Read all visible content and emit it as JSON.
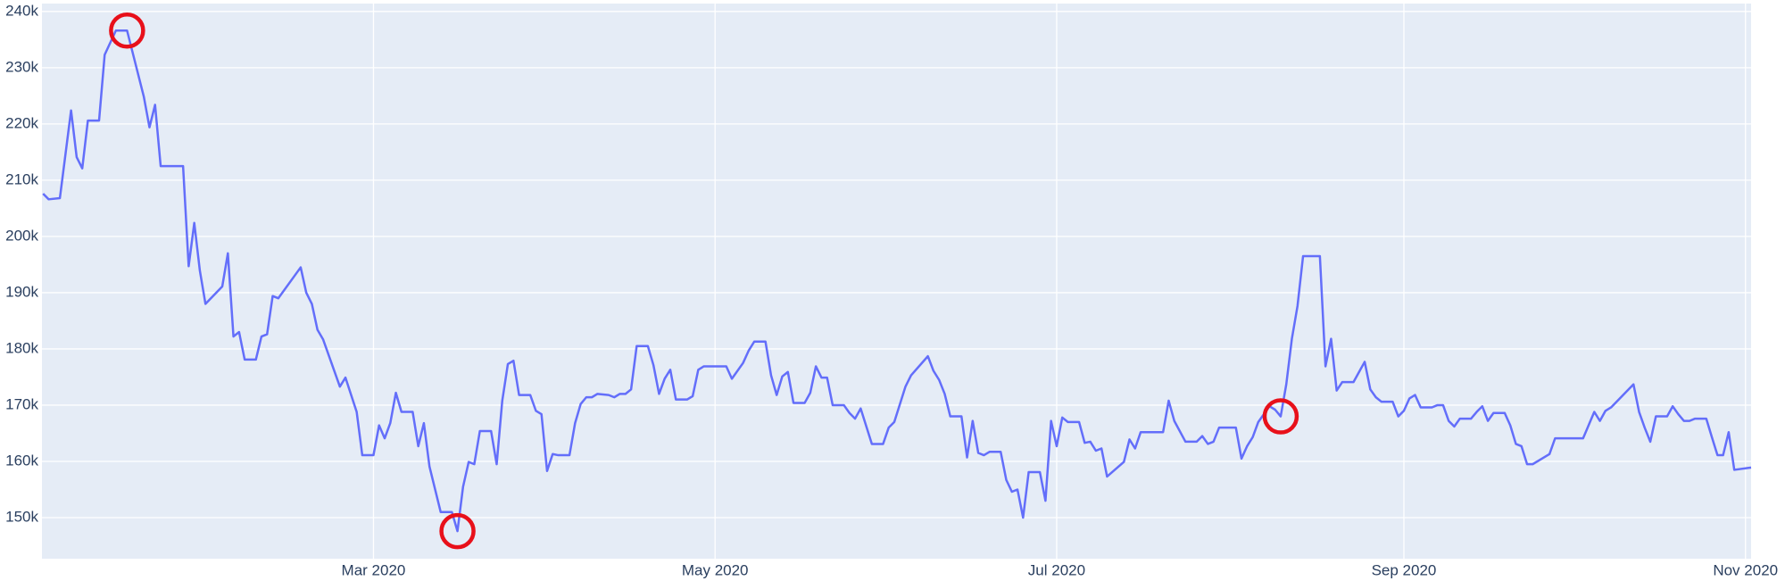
{
  "chart_data": {
    "type": "line",
    "xlim": [
      0.8,
      306
    ],
    "xticks": [
      {
        "value": 60,
        "label": "Mar 2020"
      },
      {
        "value": 121,
        "label": "May 2020"
      },
      {
        "value": 182,
        "label": "Jul 2020"
      },
      {
        "value": 244,
        "label": "Sep 2020"
      },
      {
        "value": 305,
        "label": "Nov 2020"
      }
    ],
    "ylim": [
      142700,
      241400
    ],
    "yticks": [
      {
        "value": 150000,
        "label": "150k"
      },
      {
        "value": 160000,
        "label": "160k"
      },
      {
        "value": 170000,
        "label": "170k"
      },
      {
        "value": 180000,
        "label": "180k"
      },
      {
        "value": 190000,
        "label": "190k"
      },
      {
        "value": 200000,
        "label": "200k"
      },
      {
        "value": 210000,
        "label": "210k"
      },
      {
        "value": 220000,
        "label": "220k"
      },
      {
        "value": 230000,
        "label": "230k"
      },
      {
        "value": 240000,
        "label": "240k"
      }
    ],
    "grid": true,
    "background": "#e5ecf6",
    "series": [
      {
        "color": "#636efa",
        "mode": "lines",
        "x": [
          1,
          2,
          4,
          6,
          7,
          8,
          9,
          11,
          12,
          14,
          16,
          19,
          20,
          21,
          22,
          26,
          27,
          28,
          29,
          30,
          33,
          34,
          35,
          36,
          37,
          39,
          40,
          41,
          42,
          43,
          47,
          48,
          49,
          50,
          51,
          54,
          55,
          57,
          58,
          60,
          61,
          62,
          63,
          64,
          65,
          67,
          68,
          69,
          70,
          72,
          74,
          75,
          76,
          77,
          78,
          79,
          81,
          82,
          83,
          84,
          85,
          86,
          88,
          89,
          90,
          91,
          92,
          93,
          95,
          96,
          97,
          98,
          99,
          100,
          102,
          103,
          104,
          105,
          106,
          107,
          109,
          110,
          111,
          112,
          113,
          114,
          116,
          117,
          118,
          119,
          123,
          124,
          126,
          127,
          128,
          130,
          131,
          132,
          133,
          134,
          135,
          137,
          138,
          139,
          140,
          141,
          142,
          144,
          145,
          146,
          147,
          149,
          151,
          152,
          153,
          155,
          156,
          159,
          160,
          161,
          162,
          163,
          165,
          166,
          167,
          168,
          169,
          170,
          172,
          173,
          174,
          175,
          176,
          177,
          179,
          180,
          181,
          182,
          183,
          184,
          186,
          187,
          188,
          189,
          190,
          191,
          194,
          195,
          196,
          197,
          201,
          202,
          203,
          205,
          207,
          208,
          209,
          210,
          211,
          214,
          215,
          216,
          217,
          218,
          220,
          221,
          222,
          223,
          224,
          225,
          226,
          229,
          230,
          231,
          232,
          233,
          235,
          237,
          238,
          239,
          240,
          242,
          243,
          244,
          245,
          246,
          247,
          249,
          250,
          251,
          252,
          253,
          254,
          256,
          257,
          258,
          259,
          260,
          262,
          263,
          264,
          265,
          266,
          267,
          269,
          270,
          271,
          276,
          278,
          279,
          280,
          281,
          285,
          286,
          287,
          288,
          289,
          291,
          292,
          293,
          294,
          295,
          296,
          298,
          299,
          300,
          301,
          302,
          303,
          306
        ],
        "values": [
          207600,
          206600,
          206800,
          222400,
          214100,
          212100,
          220600,
          220600,
          232300,
          236600,
          236600,
          224800,
          219400,
          223400,
          212500,
          212500,
          194700,
          202400,
          193900,
          188000,
          191100,
          197000,
          182200,
          183000,
          178100,
          178100,
          182200,
          182600,
          189400,
          189000,
          194500,
          190000,
          188000,
          183400,
          181700,
          173300,
          174900,
          168800,
          161100,
          161100,
          166400,
          164100,
          166800,
          172200,
          168800,
          168800,
          162700,
          166800,
          159100,
          151000,
          151000,
          147600,
          155500,
          159900,
          159500,
          165400,
          165400,
          159500,
          170800,
          177300,
          177900,
          171800,
          171800,
          169000,
          168400,
          158300,
          161300,
          161100,
          161100,
          166800,
          170200,
          171400,
          171400,
          172000,
          171800,
          171400,
          172000,
          172000,
          172800,
          180500,
          180500,
          177100,
          172000,
          174700,
          176300,
          171000,
          171000,
          171600,
          176300,
          176900,
          176900,
          174700,
          177500,
          179700,
          181300,
          181300,
          175300,
          171800,
          175100,
          175900,
          170400,
          170400,
          172200,
          176900,
          174900,
          174900,
          170000,
          170000,
          168600,
          167600,
          169400,
          163100,
          163100,
          166000,
          167000,
          173300,
          175300,
          178700,
          176100,
          174500,
          172000,
          168000,
          168000,
          160700,
          167200,
          161500,
          161100,
          161700,
          161700,
          156700,
          154600,
          155000,
          150000,
          158100,
          158100,
          153000,
          167200,
          162700,
          167800,
          167000,
          167000,
          163300,
          163500,
          161900,
          162300,
          157300,
          159900,
          163900,
          162300,
          165200,
          165200,
          170800,
          167200,
          163500,
          163500,
          164500,
          163100,
          163500,
          166000,
          166000,
          160500,
          162700,
          164300,
          167000,
          169800,
          169200,
          168000,
          173700,
          181800,
          187600,
          196500,
          196500,
          176900,
          181800,
          172600,
          174100,
          174100,
          177700,
          172800,
          171400,
          170600,
          170600,
          168000,
          169000,
          171200,
          171800,
          169600,
          169600,
          170000,
          170000,
          167200,
          166200,
          167600,
          167600,
          168800,
          169800,
          167200,
          168600,
          168600,
          166400,
          163100,
          162700,
          159500,
          159500,
          160700,
          161300,
          164100,
          164100,
          168800,
          167200,
          169000,
          169600,
          173700,
          168800,
          166000,
          163500,
          168000,
          168000,
          169800,
          168400,
          167200,
          167200,
          167600,
          167600,
          164300,
          161100,
          161100,
          165200,
          158500,
          158900
        ]
      },
      {
        "color": "#e8101a",
        "mode": "markers",
        "x": [
          16,
          75,
          222
        ],
        "values": [
          236600,
          147600,
          168000
        ]
      }
    ]
  }
}
